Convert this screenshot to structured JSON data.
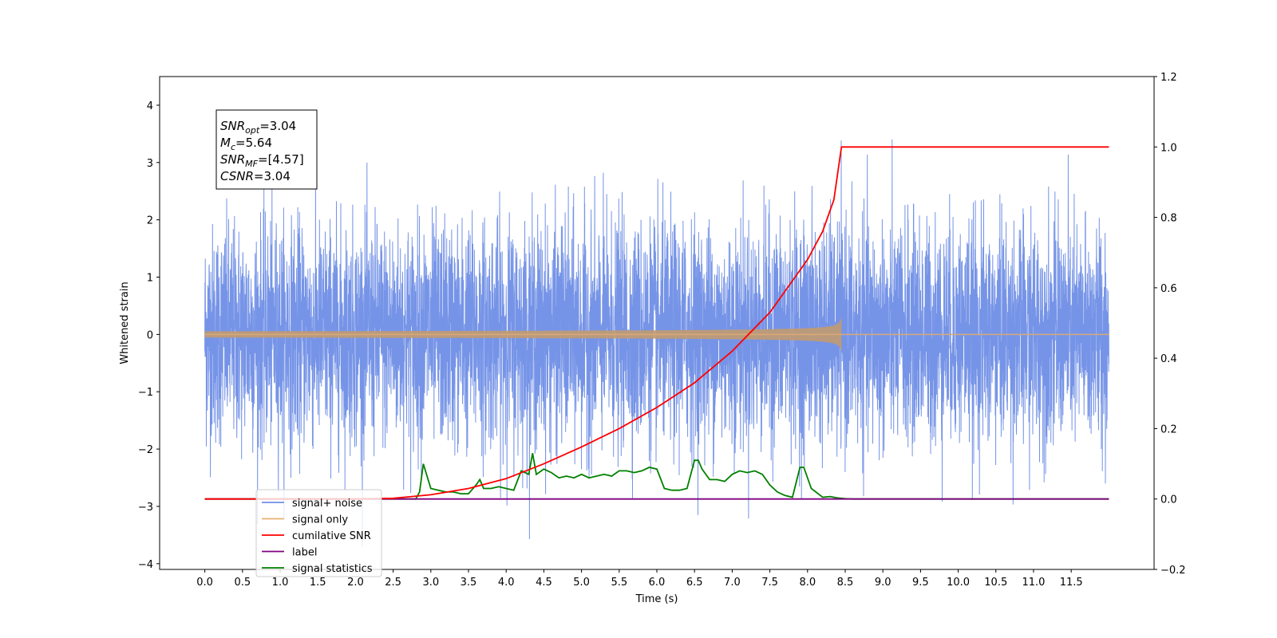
{
  "chart_data": {
    "type": "line",
    "xlabel": "Time (s)",
    "ylabel": "Whitened strain",
    "xlim": [
      -0.6,
      12.6
    ],
    "ylim": [
      -4.1,
      4.5
    ],
    "ylim_right": [
      -0.2,
      1.2
    ],
    "grid": false,
    "legend_position": "lower-left",
    "x_ticks": [
      "0.0",
      "0.5",
      "1.0",
      "1.5",
      "2.0",
      "2.5",
      "3.0",
      "3.5",
      "4.0",
      "4.5",
      "5.0",
      "5.5",
      "6.0",
      "6.5",
      "7.0",
      "7.5",
      "8.0",
      "8.5",
      "9.0",
      "9.5",
      "10.0",
      "10.5",
      "11.0",
      "11.5"
    ],
    "y_ticks_left": [
      "4",
      "3",
      "2",
      "1",
      "0",
      "−1",
      "−2",
      "−3",
      "−4"
    ],
    "y_ticks_right": [
      "1.2",
      "1.0",
      "0.8",
      "0.6",
      "0.4",
      "0.2",
      "0.0",
      "−0.2"
    ],
    "stats": [
      {
        "name": "SNR",
        "sub": "opt",
        "value": "=3.04"
      },
      {
        "name": "M",
        "sub": "c",
        "value": "=5.64"
      },
      {
        "name": "SNR",
        "sub": "MF",
        "value": "=[4.57]"
      },
      {
        "name": "CSNR",
        "sub": "",
        "value": "=3.04"
      }
    ],
    "series": [
      {
        "name": "signal+ noise",
        "color": "#6f8ee6",
        "axis": "left",
        "noise_sigma": 0.95,
        "t_start": 0.0,
        "t_end": 12.0
      },
      {
        "name": "signal only",
        "color": "#e8b070",
        "axis": "left",
        "chirp_end": 8.45,
        "amplitude_end": 0.3
      },
      {
        "name": "cumilative SNR",
        "color": "#ff0000",
        "axis": "right",
        "x": [
          0.0,
          2.0,
          2.5,
          3.0,
          3.5,
          4.0,
          4.5,
          5.0,
          5.5,
          6.0,
          6.5,
          7.0,
          7.5,
          8.0,
          8.2,
          8.35,
          8.45,
          12.0
        ],
        "y": [
          0.0,
          0.0,
          0.002,
          0.012,
          0.03,
          0.058,
          0.1,
          0.148,
          0.2,
          0.26,
          0.33,
          0.42,
          0.53,
          0.68,
          0.76,
          0.85,
          1.0,
          1.0
        ]
      },
      {
        "name": "label",
        "color": "#800080",
        "axis": "right",
        "x": [
          0.0,
          12.0
        ],
        "y": [
          0.0,
          0.0
        ]
      },
      {
        "name": "signal statistics",
        "color": "#008000",
        "axis": "right",
        "x": [
          0.0,
          2.8,
          2.85,
          2.9,
          3.0,
          3.1,
          3.2,
          3.3,
          3.4,
          3.5,
          3.6,
          3.65,
          3.7,
          3.8,
          3.9,
          4.0,
          4.1,
          4.2,
          4.3,
          4.35,
          4.4,
          4.5,
          4.6,
          4.7,
          4.8,
          4.9,
          5.0,
          5.1,
          5.2,
          5.3,
          5.4,
          5.5,
          5.6,
          5.7,
          5.8,
          5.9,
          6.0,
          6.1,
          6.2,
          6.3,
          6.4,
          6.5,
          6.55,
          6.6,
          6.7,
          6.8,
          6.9,
          7.0,
          7.1,
          7.2,
          7.3,
          7.4,
          7.5,
          7.6,
          7.7,
          7.8,
          7.9,
          7.95,
          8.05,
          8.2,
          8.3,
          8.4,
          8.5,
          8.6,
          12.0
        ],
        "y": [
          0.0,
          0.0,
          0.02,
          0.1,
          0.03,
          0.025,
          0.02,
          0.02,
          0.015,
          0.015,
          0.04,
          0.055,
          0.03,
          0.03,
          0.035,
          0.03,
          0.025,
          0.08,
          0.07,
          0.13,
          0.07,
          0.085,
          0.075,
          0.06,
          0.065,
          0.06,
          0.07,
          0.06,
          0.065,
          0.07,
          0.065,
          0.08,
          0.08,
          0.075,
          0.08,
          0.09,
          0.085,
          0.03,
          0.025,
          0.025,
          0.03,
          0.11,
          0.11,
          0.085,
          0.055,
          0.055,
          0.05,
          0.07,
          0.08,
          0.075,
          0.08,
          0.07,
          0.04,
          0.02,
          0.01,
          0.005,
          0.09,
          0.09,
          0.03,
          0.005,
          0.007,
          0.003,
          0.001,
          0.0,
          0.0
        ]
      }
    ]
  }
}
